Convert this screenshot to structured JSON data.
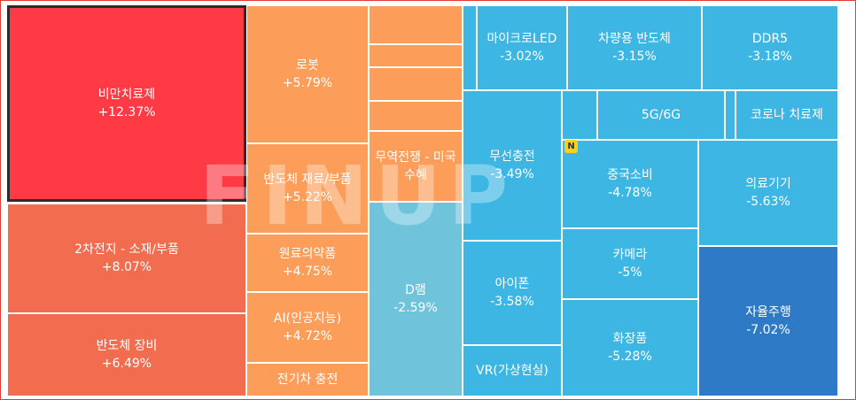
{
  "watermark": "FINUP",
  "new_badge": "N",
  "chart_data": {
    "type": "treemap",
    "colors": {
      "strong_up": "#fe3a45",
      "up": "#f26c50",
      "mild_up": "#fc9e59",
      "flat": "#6fc4dc",
      "down": "#3db6e3",
      "strong_down": "#2f7ac6"
    },
    "tiles": [
      {
        "name": "비만치료제",
        "change": "+12.37%",
        "value": 12.37,
        "color": "strong_up",
        "selected": true
      },
      {
        "name": "2차전지 - 소재/부품",
        "change": "+8.07%",
        "value": 8.07,
        "color": "up"
      },
      {
        "name": "반도체 장비",
        "change": "+6.49%",
        "value": 6.49,
        "color": "up"
      },
      {
        "name": "로봇",
        "change": "+5.79%",
        "value": 5.79,
        "color": "mild_up"
      },
      {
        "name": "반도체 재료/부품",
        "change": "+5.22%",
        "value": 5.22,
        "color": "mild_up"
      },
      {
        "name": "원료의약품",
        "change": "+4.75%",
        "value": 4.75,
        "color": "mild_up"
      },
      {
        "name": "AI(인공지능)",
        "change": "+4.72%",
        "value": 4.72,
        "color": "mild_up"
      },
      {
        "name": "전기차 충전",
        "change": "",
        "value": null,
        "color": "mild_up"
      },
      {
        "name": "",
        "change": "",
        "value": null,
        "color": "mild_up"
      },
      {
        "name": "",
        "change": "",
        "value": null,
        "color": "mild_up"
      },
      {
        "name": "",
        "change": "",
        "value": null,
        "color": "mild_up"
      },
      {
        "name": "",
        "change": "",
        "value": null,
        "color": "mild_up"
      },
      {
        "name": "무역전쟁 - 미국수혜",
        "change": "",
        "value": null,
        "color": "mild_up"
      },
      {
        "name": "D램",
        "change": "-2.59%",
        "value": -2.59,
        "color": "flat"
      },
      {
        "name": "",
        "change": "",
        "value": null,
        "color": "down"
      },
      {
        "name": "마이크로LED",
        "change": "-3.02%",
        "value": -3.02,
        "color": "down"
      },
      {
        "name": "차량용 반도체",
        "change": "-3.15%",
        "value": -3.15,
        "color": "down"
      },
      {
        "name": "DDR5",
        "change": "-3.18%",
        "value": -3.18,
        "color": "down"
      },
      {
        "name": "",
        "change": "",
        "value": null,
        "color": "down"
      },
      {
        "name": "5G/6G",
        "change": "",
        "value": null,
        "color": "down"
      },
      {
        "name": "",
        "change": "",
        "value": null,
        "color": "down"
      },
      {
        "name": "코로나 치료제",
        "change": "",
        "value": null,
        "color": "down"
      },
      {
        "name": "무선충전",
        "change": "-3.49%",
        "value": -3.49,
        "color": "down"
      },
      {
        "name": "중국소비",
        "change": "-4.78%",
        "value": -4.78,
        "color": "down"
      },
      {
        "name": "의료기기",
        "change": "-5.63%",
        "value": -5.63,
        "color": "down"
      },
      {
        "name": "아이폰",
        "change": "-3.58%",
        "value": -3.58,
        "color": "down"
      },
      {
        "name": "카메라",
        "change": "-5%",
        "value": -5,
        "color": "down"
      },
      {
        "name": "VR(가상현실)",
        "change": "",
        "value": null,
        "color": "down"
      },
      {
        "name": "화장품",
        "change": "-5.28%",
        "value": -5.28,
        "color": "down"
      },
      {
        "name": "자율주행",
        "change": "-7.02%",
        "value": -7.02,
        "color": "strong_down"
      }
    ]
  }
}
